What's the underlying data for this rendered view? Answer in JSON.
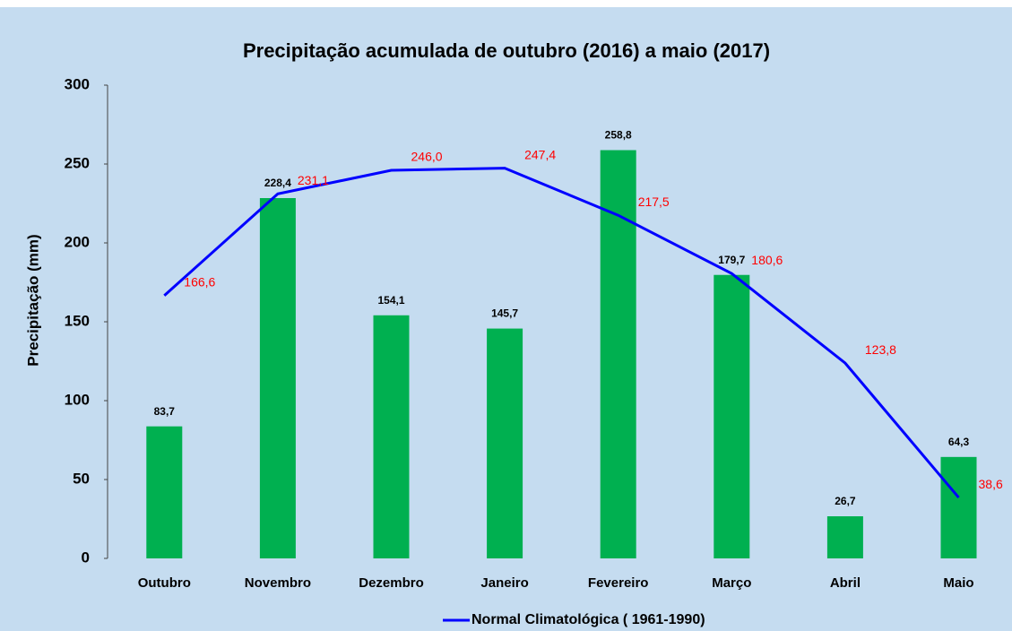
{
  "chart_data": {
    "type": "bar",
    "title": "Precipitação acumulada de outubro (2016) a maio (2017)",
    "y_label": "Precipitação (mm)",
    "categories": [
      "Outubro",
      "Novembro",
      "Dezembro",
      "Janeiro",
      "Fevereiro",
      "Março",
      "Abril",
      "Maio"
    ],
    "series": [
      {
        "type": "bar",
        "color": "#00b050",
        "values": [
          83.7,
          228.4,
          154.1,
          145.7,
          258.8,
          179.7,
          26.7,
          64.3
        ],
        "value_labels": [
          "83,7",
          "228,4",
          "154,1",
          "145,7",
          "258,8",
          "179,7",
          "26,7",
          "64,3"
        ]
      },
      {
        "type": "line",
        "name": "Normal Climatológica ( 1961-1990)",
        "color": "#0000ff",
        "values": [
          166.6,
          231.1,
          246.0,
          247.4,
          217.5,
          180.6,
          123.8,
          38.6
        ],
        "value_labels": [
          "166,6",
          "231,1",
          "246,0",
          "247,4",
          "217,5",
          "180,6",
          "123,8",
          "38,6"
        ]
      }
    ],
    "ylim": [
      0,
      300
    ],
    "yticks": [
      0,
      50,
      100,
      150,
      200,
      250,
      300
    ],
    "legend": "bottom"
  }
}
